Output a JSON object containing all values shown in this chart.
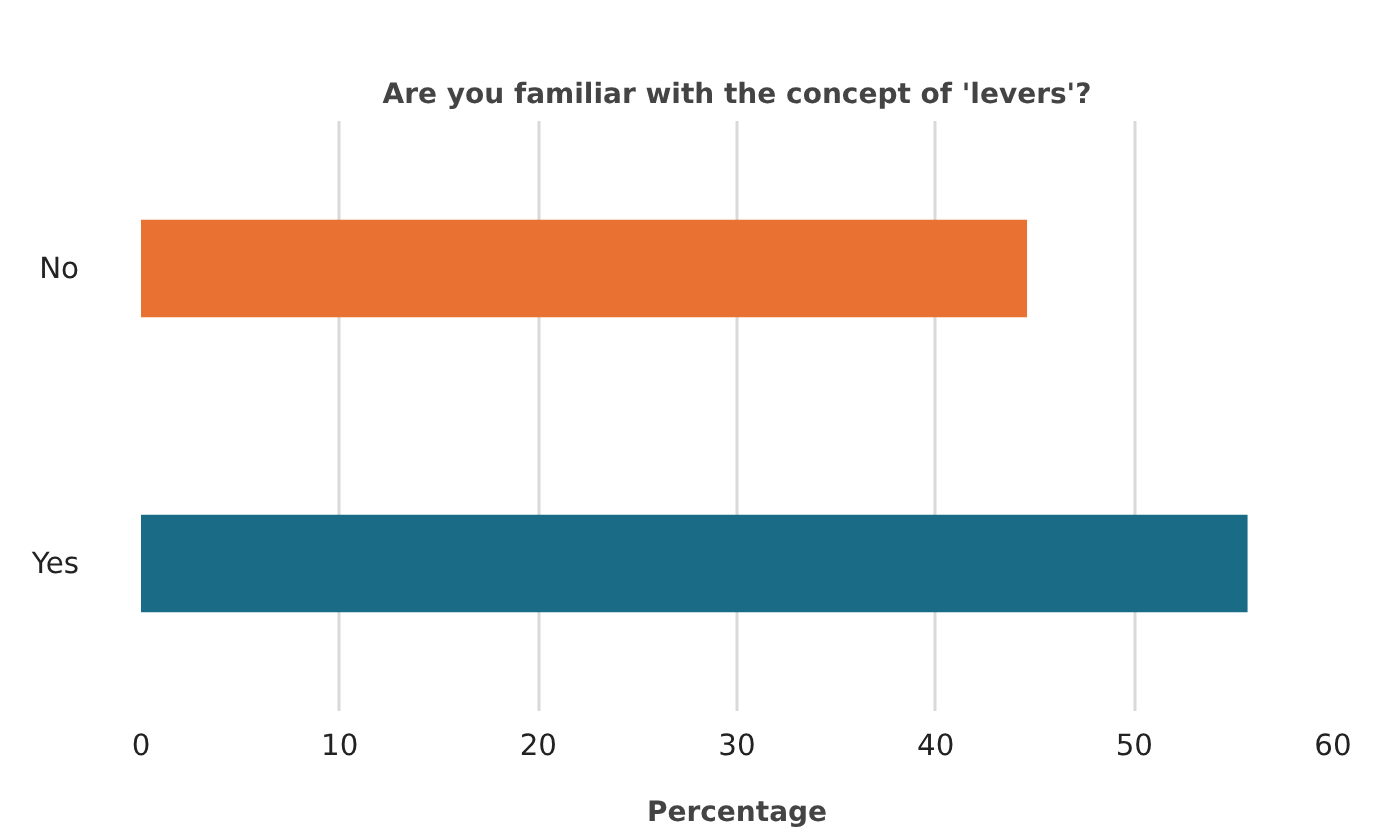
{
  "chart_data": {
    "type": "bar",
    "orientation": "horizontal",
    "title": "Are you familiar with the concept of 'levers'?",
    "xlabel": "Percentage",
    "categories": [
      "No",
      "Yes"
    ],
    "values": [
      44.6,
      55.7
    ],
    "colors": [
      "#e97132",
      "#196b86"
    ],
    "xlim": [
      0,
      60
    ],
    "xticks": [
      0,
      10,
      20,
      30,
      40,
      50,
      60
    ],
    "grid": "x"
  }
}
